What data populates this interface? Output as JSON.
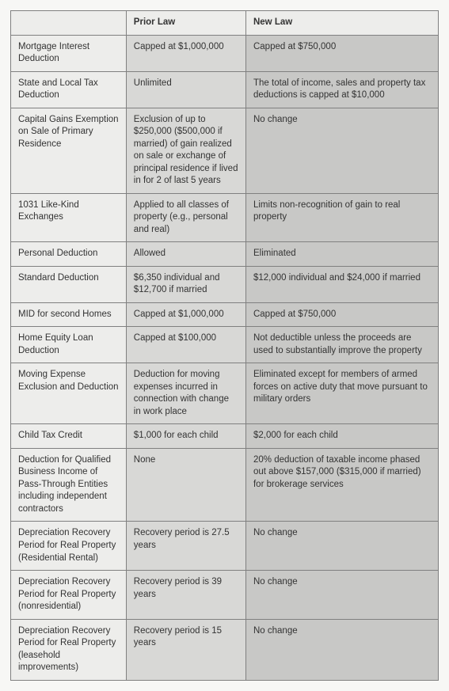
{
  "table": {
    "headers": [
      "",
      "Prior Law",
      "New Law"
    ],
    "rows": [
      {
        "label": "Mortgage Interest Deduction",
        "prior": "Capped at $1,000,000",
        "new": "Capped at $750,000"
      },
      {
        "label": "State and Local Tax Deduction",
        "prior": "Unlimited",
        "new": "The total of income, sales and property tax deductions is capped at $10,000"
      },
      {
        "label": "Capital Gains Exemption on Sale of Primary Residence",
        "prior": "Exclusion of up to $250,000 ($500,000 if married) of gain realized on sale or exchange of principal residence if lived in for 2 of last 5 years",
        "new": "No change"
      },
      {
        "label": "1031 Like-Kind Exchanges",
        "prior": "Applied to all classes of property (e.g., personal and real)",
        "new": "Limits non-recognition of gain to real property"
      },
      {
        "label": "Personal Deduction",
        "prior": "Allowed",
        "new": "Eliminated"
      },
      {
        "label": "Standard Deduction",
        "prior": "$6,350 individual and $12,700 if married",
        "new": "$12,000 individual and $24,000 if married"
      },
      {
        "label": "MID for second Homes",
        "prior": "Capped at $1,000,000",
        "new": "Capped at $750,000"
      },
      {
        "label": "Home Equity Loan Deduction",
        "prior": "Capped at $100,000",
        "new": "Not deductible unless the proceeds are used to substantially improve the property"
      },
      {
        "label": "Moving Expense Exclusion and Deduction",
        "prior": "Deduction for moving expenses incurred in connection with change in work place",
        "new": "Eliminated except for members of armed forces on active duty that move pursuant to military orders"
      },
      {
        "label": "Child Tax Credit",
        "prior": "$1,000 for each child",
        "new": "$2,000 for each child"
      },
      {
        "label": "Deduction for Qualified Business Income of Pass-Through Entities including independent contractors",
        "prior": "None",
        "new": "20% deduction of taxable income phased out above $157,000 ($315,000 if married) for brokerage services"
      },
      {
        "label": "Depreciation Recovery Period for Real Property (Residential Rental)",
        "prior": "Recovery period is 27.5 years",
        "new": "No change"
      },
      {
        "label": "Depreciation Recovery Period for Real Property (nonresidential)",
        "prior": "Recovery period is 39 years",
        "new": "No change"
      },
      {
        "label": "Depreciation Recovery Period for Real Property (leasehold improvements)",
        "prior": "Recovery period is 15 years",
        "new": "No change"
      }
    ]
  }
}
